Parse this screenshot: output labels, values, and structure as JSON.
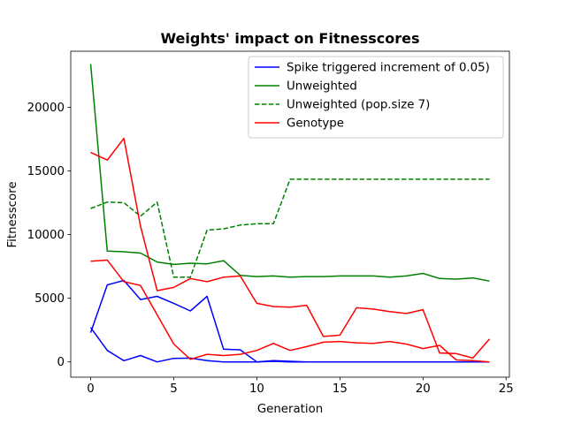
{
  "chart_data": {
    "type": "line",
    "title": "Weights' impact on Fitnesscores",
    "xlabel": "Generation",
    "ylabel": "Fitnesscore",
    "xlim": [
      -1.2,
      25.2
    ],
    "ylim": [
      -1200,
      24400
    ],
    "xticks": [
      0,
      5,
      10,
      15,
      20,
      25
    ],
    "yticks": [
      0,
      5000,
      10000,
      15000,
      20000
    ],
    "grid": false,
    "legend_position": "top-right",
    "series": [
      {
        "name": "Spike triggered increment of 0.05)",
        "color": "#0000ff",
        "dash": "solid",
        "x": [
          0,
          1,
          2,
          3,
          4,
          5,
          6,
          7,
          8,
          9,
          10,
          11,
          12,
          13,
          14,
          15,
          16,
          17,
          18,
          19,
          20,
          21,
          22,
          23,
          24
        ],
        "values": [
          2700,
          900,
          100,
          500,
          0,
          280,
          300,
          100,
          0,
          0,
          0,
          50,
          0,
          0,
          0,
          0,
          0,
          0,
          0,
          0,
          0,
          0,
          0,
          0,
          0
        ]
      },
      {
        "name": "",
        "color": "#0000ff",
        "dash": "solid",
        "x": [
          0,
          1,
          2,
          3,
          4,
          5,
          6,
          7,
          8,
          9,
          10,
          11,
          12,
          13,
          14,
          15,
          16,
          17,
          18,
          19,
          20,
          21,
          22,
          23,
          24
        ],
        "values": [
          2300,
          6050,
          6400,
          4900,
          5150,
          4600,
          4000,
          5150,
          1000,
          950,
          0,
          100,
          50,
          0,
          0,
          0,
          0,
          0,
          0,
          0,
          0,
          0,
          0,
          0,
          0
        ]
      },
      {
        "name": "Unweighted",
        "color": "#008000",
        "dash": "solid",
        "x": [
          0,
          1,
          2,
          3,
          4,
          5,
          6,
          7,
          8,
          9,
          10,
          11,
          12,
          13,
          14,
          15,
          16,
          17,
          18,
          19,
          20,
          21,
          22,
          23,
          24
        ],
        "values": [
          23400,
          8700,
          8650,
          8550,
          7850,
          7650,
          7750,
          7700,
          7950,
          6800,
          6700,
          6750,
          6650,
          6700,
          6700,
          6750,
          6750,
          6750,
          6650,
          6750,
          6950,
          6550,
          6500,
          6600,
          6350
        ]
      },
      {
        "name": "Unweighted (pop.size 7)",
        "color": "#008000",
        "dash": "dashed",
        "x": [
          0,
          1,
          2,
          3,
          4,
          5,
          6,
          7,
          8,
          9,
          10,
          11,
          12,
          13,
          14,
          15,
          16,
          17,
          18,
          19,
          20,
          21,
          22,
          23,
          24
        ],
        "values": [
          12050,
          12550,
          12500,
          11450,
          12550,
          6650,
          6650,
          10350,
          10450,
          10750,
          10850,
          10850,
          14350,
          14350,
          14350,
          14350,
          14350,
          14350,
          14350,
          14350,
          14350,
          14350,
          14350,
          14350,
          14350
        ]
      },
      {
        "name": "Genotype",
        "color": "#ff0000",
        "dash": "solid",
        "x": [
          0,
          1,
          2,
          3,
          4,
          5,
          6,
          7,
          8,
          9,
          10,
          11,
          12,
          13,
          14,
          15,
          16,
          17,
          18,
          19,
          20,
          21,
          22,
          23,
          24
        ],
        "values": [
          16450,
          15850,
          17550,
          10650,
          5600,
          5850,
          6550,
          6300,
          6650,
          6750,
          4600,
          4350,
          4300,
          4450,
          2000,
          2100,
          4250,
          4150,
          3950,
          3800,
          4100,
          700,
          650,
          300,
          1800
        ]
      },
      {
        "name": "",
        "color": "#ff0000",
        "dash": "solid",
        "x": [
          0,
          1,
          2,
          3,
          4,
          5,
          6,
          7,
          8,
          9,
          10,
          11,
          12,
          13,
          14,
          15,
          16,
          17,
          18,
          19,
          20,
          21,
          22,
          23,
          24
        ],
        "values": [
          7900,
          8000,
          6300,
          6000,
          3700,
          1400,
          200,
          600,
          500,
          600,
          900,
          1450,
          900,
          1200,
          1550,
          1600,
          1500,
          1450,
          1600,
          1400,
          1050,
          1300,
          150,
          100,
          0
        ]
      }
    ]
  }
}
